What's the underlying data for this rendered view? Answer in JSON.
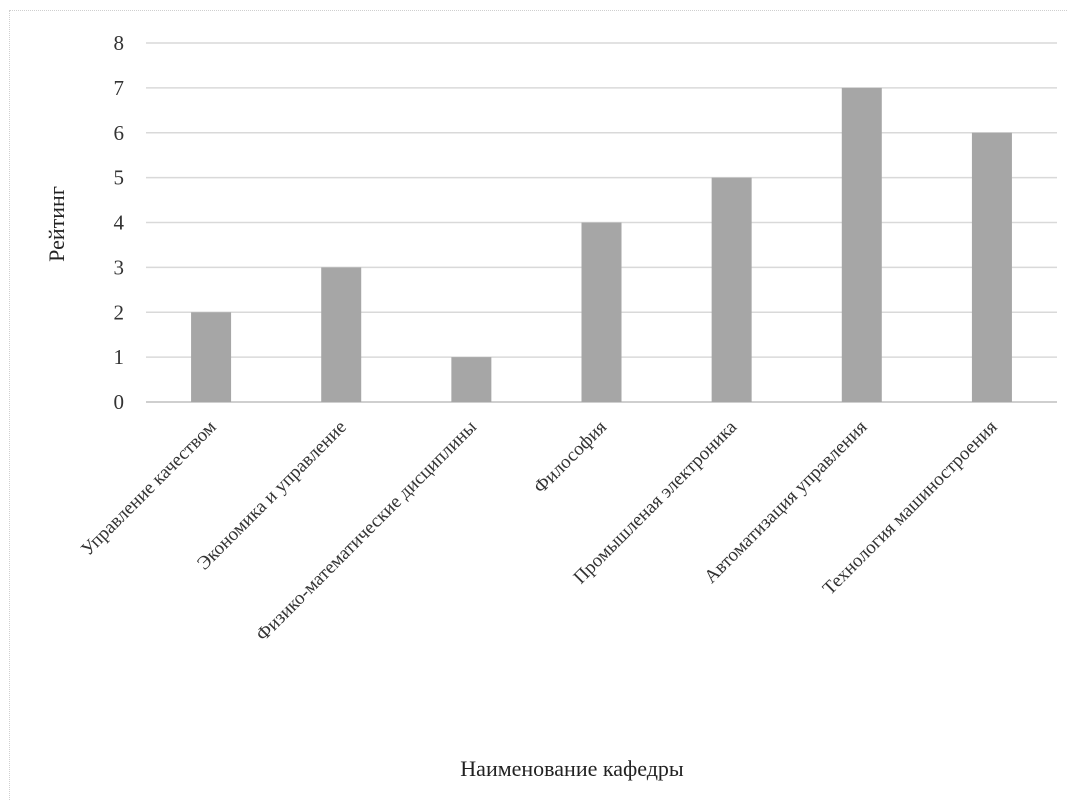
{
  "chart_data": {
    "type": "bar",
    "title": "",
    "xlabel": "Наименование кафедры",
    "ylabel": "Рейтинг",
    "ylim": [
      0,
      8
    ],
    "yticks": [
      0,
      1,
      2,
      3,
      4,
      5,
      6,
      7,
      8
    ],
    "grid": true,
    "legend": "none",
    "bar_color": "#a6a6a6",
    "grid_color": "#d9d9d9",
    "categories": [
      "Управление качеством",
      "Экономика и управление",
      "Физико-математические дисциплины",
      "Философия",
      "Промышленая электроника",
      "Автоматизация управления",
      "Технология машиностроения"
    ],
    "values": [
      2,
      3,
      1,
      4,
      5,
      7,
      6
    ]
  }
}
